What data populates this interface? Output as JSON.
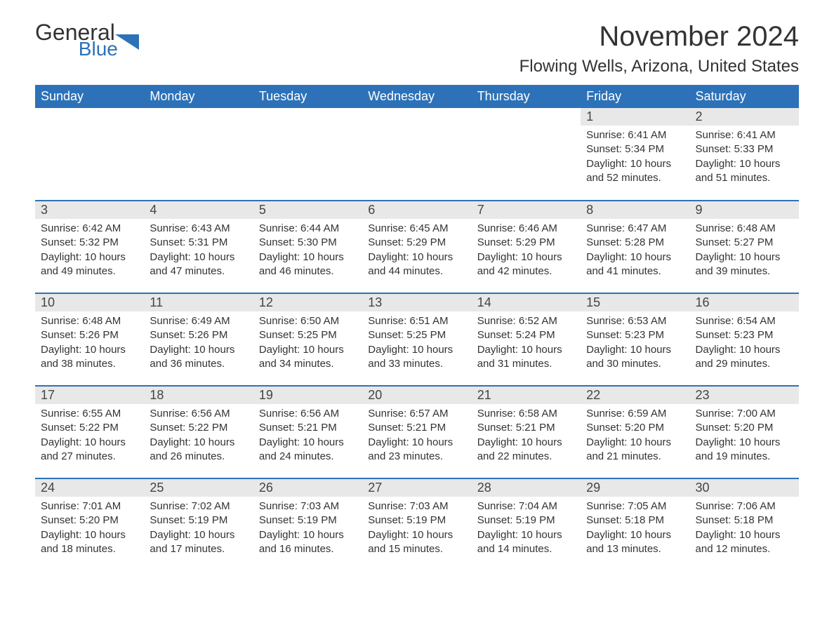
{
  "logo": {
    "general": "General",
    "blue": "Blue",
    "shape_color": "#2d72b8"
  },
  "title": "November 2024",
  "location": "Flowing Wells, Arizona, United States",
  "colors": {
    "header_bg": "#2d72b8",
    "header_text": "#ffffff",
    "day_num_bg": "#e8e8e8",
    "cell_border": "#2d72b8",
    "text": "#333333",
    "background": "#ffffff"
  },
  "typography": {
    "title_fontsize": 40,
    "location_fontsize": 24,
    "header_fontsize": 18,
    "daynum_fontsize": 18,
    "body_fontsize": 15
  },
  "layout": {
    "columns": 7,
    "rows": 5,
    "first_day_column_index": 5
  },
  "day_headers": [
    "Sunday",
    "Monday",
    "Tuesday",
    "Wednesday",
    "Thursday",
    "Friday",
    "Saturday"
  ],
  "days": [
    {
      "n": 1,
      "sunrise": "6:41 AM",
      "sunset": "5:34 PM",
      "daylight": "10 hours and 52 minutes."
    },
    {
      "n": 2,
      "sunrise": "6:41 AM",
      "sunset": "5:33 PM",
      "daylight": "10 hours and 51 minutes."
    },
    {
      "n": 3,
      "sunrise": "6:42 AM",
      "sunset": "5:32 PM",
      "daylight": "10 hours and 49 minutes."
    },
    {
      "n": 4,
      "sunrise": "6:43 AM",
      "sunset": "5:31 PM",
      "daylight": "10 hours and 47 minutes."
    },
    {
      "n": 5,
      "sunrise": "6:44 AM",
      "sunset": "5:30 PM",
      "daylight": "10 hours and 46 minutes."
    },
    {
      "n": 6,
      "sunrise": "6:45 AM",
      "sunset": "5:29 PM",
      "daylight": "10 hours and 44 minutes."
    },
    {
      "n": 7,
      "sunrise": "6:46 AM",
      "sunset": "5:29 PM",
      "daylight": "10 hours and 42 minutes."
    },
    {
      "n": 8,
      "sunrise": "6:47 AM",
      "sunset": "5:28 PM",
      "daylight": "10 hours and 41 minutes."
    },
    {
      "n": 9,
      "sunrise": "6:48 AM",
      "sunset": "5:27 PM",
      "daylight": "10 hours and 39 minutes."
    },
    {
      "n": 10,
      "sunrise": "6:48 AM",
      "sunset": "5:26 PM",
      "daylight": "10 hours and 38 minutes."
    },
    {
      "n": 11,
      "sunrise": "6:49 AM",
      "sunset": "5:26 PM",
      "daylight": "10 hours and 36 minutes."
    },
    {
      "n": 12,
      "sunrise": "6:50 AM",
      "sunset": "5:25 PM",
      "daylight": "10 hours and 34 minutes."
    },
    {
      "n": 13,
      "sunrise": "6:51 AM",
      "sunset": "5:25 PM",
      "daylight": "10 hours and 33 minutes."
    },
    {
      "n": 14,
      "sunrise": "6:52 AM",
      "sunset": "5:24 PM",
      "daylight": "10 hours and 31 minutes."
    },
    {
      "n": 15,
      "sunrise": "6:53 AM",
      "sunset": "5:23 PM",
      "daylight": "10 hours and 30 minutes."
    },
    {
      "n": 16,
      "sunrise": "6:54 AM",
      "sunset": "5:23 PM",
      "daylight": "10 hours and 29 minutes."
    },
    {
      "n": 17,
      "sunrise": "6:55 AM",
      "sunset": "5:22 PM",
      "daylight": "10 hours and 27 minutes."
    },
    {
      "n": 18,
      "sunrise": "6:56 AM",
      "sunset": "5:22 PM",
      "daylight": "10 hours and 26 minutes."
    },
    {
      "n": 19,
      "sunrise": "6:56 AM",
      "sunset": "5:21 PM",
      "daylight": "10 hours and 24 minutes."
    },
    {
      "n": 20,
      "sunrise": "6:57 AM",
      "sunset": "5:21 PM",
      "daylight": "10 hours and 23 minutes."
    },
    {
      "n": 21,
      "sunrise": "6:58 AM",
      "sunset": "5:21 PM",
      "daylight": "10 hours and 22 minutes."
    },
    {
      "n": 22,
      "sunrise": "6:59 AM",
      "sunset": "5:20 PM",
      "daylight": "10 hours and 21 minutes."
    },
    {
      "n": 23,
      "sunrise": "7:00 AM",
      "sunset": "5:20 PM",
      "daylight": "10 hours and 19 minutes."
    },
    {
      "n": 24,
      "sunrise": "7:01 AM",
      "sunset": "5:20 PM",
      "daylight": "10 hours and 18 minutes."
    },
    {
      "n": 25,
      "sunrise": "7:02 AM",
      "sunset": "5:19 PM",
      "daylight": "10 hours and 17 minutes."
    },
    {
      "n": 26,
      "sunrise": "7:03 AM",
      "sunset": "5:19 PM",
      "daylight": "10 hours and 16 minutes."
    },
    {
      "n": 27,
      "sunrise": "7:03 AM",
      "sunset": "5:19 PM",
      "daylight": "10 hours and 15 minutes."
    },
    {
      "n": 28,
      "sunrise": "7:04 AM",
      "sunset": "5:19 PM",
      "daylight": "10 hours and 14 minutes."
    },
    {
      "n": 29,
      "sunrise": "7:05 AM",
      "sunset": "5:18 PM",
      "daylight": "10 hours and 13 minutes."
    },
    {
      "n": 30,
      "sunrise": "7:06 AM",
      "sunset": "5:18 PM",
      "daylight": "10 hours and 12 minutes."
    }
  ],
  "labels": {
    "sunrise": "Sunrise:",
    "sunset": "Sunset:",
    "daylight": "Daylight:"
  }
}
